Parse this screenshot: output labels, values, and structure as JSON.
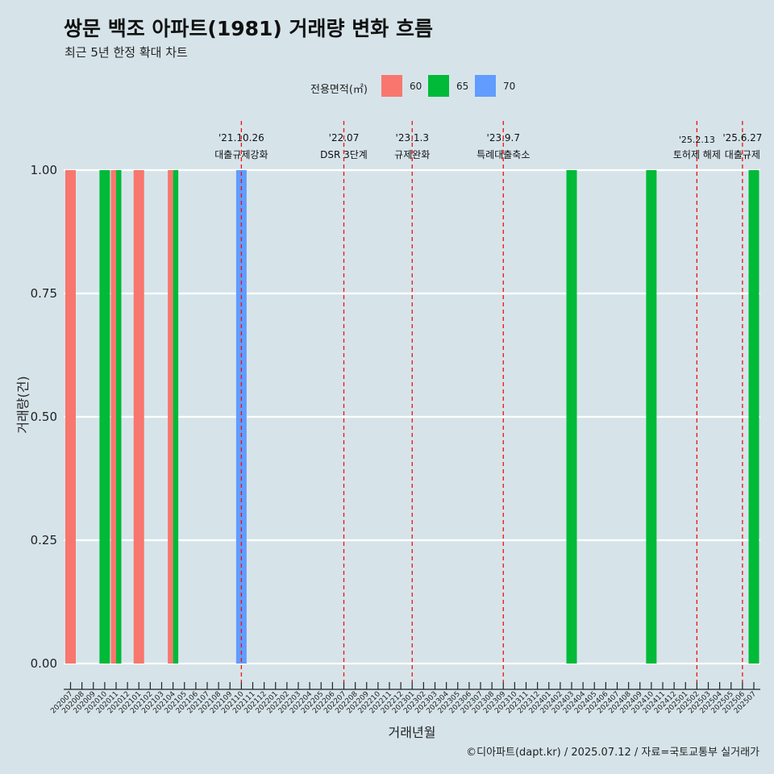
{
  "title": "쌍문 백조 아파트(1981) 거래량 변화 흐름",
  "subtitle": "최근 5년 한정 확대 차트",
  "caption": "©디아파트(dapt.kr) / 2025.07.12 / 자료=국토교통부 실거래가",
  "legend": {
    "title": "전용면적(㎡)",
    "items": [
      {
        "label": "60",
        "color": "#F8766D"
      },
      {
        "label": "65",
        "color": "#00BA38"
      },
      {
        "label": "70",
        "color": "#619CFF"
      }
    ]
  },
  "chart_data": {
    "type": "bar",
    "xlabel": "거래년월",
    "ylabel": "거래량(건)",
    "ylim": [
      0,
      1
    ],
    "y_ticks": [
      "0.00",
      "0.25",
      "0.50",
      "0.75",
      "1.00"
    ],
    "categories": [
      "202007",
      "202008",
      "202009",
      "202010",
      "202011",
      "202012",
      "202101",
      "202102",
      "202103",
      "202104",
      "202105",
      "202106",
      "202107",
      "202108",
      "202109",
      "202110",
      "202111",
      "202112",
      "202201",
      "202202",
      "202203",
      "202204",
      "202205",
      "202206",
      "202207",
      "202208",
      "202209",
      "202210",
      "202211",
      "202212",
      "202301",
      "202302",
      "202303",
      "202304",
      "202305",
      "202306",
      "202307",
      "202308",
      "202309",
      "202310",
      "202311",
      "202312",
      "202401",
      "202402",
      "202403",
      "202404",
      "202405",
      "202406",
      "202407",
      "202408",
      "202409",
      "202410",
      "202411",
      "202412",
      "202501",
      "202502",
      "202503",
      "202504",
      "202505",
      "202506",
      "202507"
    ],
    "bars": [
      {
        "x": "202007",
        "area": "60",
        "value": 1
      },
      {
        "x": "202010",
        "area": "65",
        "value": 1
      },
      {
        "x": "202011",
        "area": "60",
        "value": 1
      },
      {
        "x": "202011",
        "area": "65",
        "value": 1
      },
      {
        "x": "202101",
        "area": "60",
        "value": 1
      },
      {
        "x": "202104",
        "area": "60",
        "value": 1
      },
      {
        "x": "202104",
        "area": "65",
        "value": 1
      },
      {
        "x": "202110",
        "area": "70",
        "value": 1
      },
      {
        "x": "202403",
        "area": "65",
        "value": 1
      },
      {
        "x": "202410",
        "area": "65",
        "value": 1
      },
      {
        "x": "202507",
        "area": "65",
        "value": 1
      }
    ],
    "events": [
      {
        "x": "202110",
        "date": "'21.10.26",
        "label": "대출규제강화"
      },
      {
        "x": "202207",
        "date": "'22.07",
        "label": "DSR 3단계"
      },
      {
        "x": "202301",
        "date": "'23.1.3",
        "label": "규제완화"
      },
      {
        "x": "202309",
        "date": "'23.9.7",
        "label": "특례대출축소"
      },
      {
        "x": "202502",
        "date": "'25.2.13",
        "label": "토허제 해제"
      },
      {
        "x": "202506",
        "date": "'25.6.27",
        "label": "대출규제"
      }
    ]
  }
}
